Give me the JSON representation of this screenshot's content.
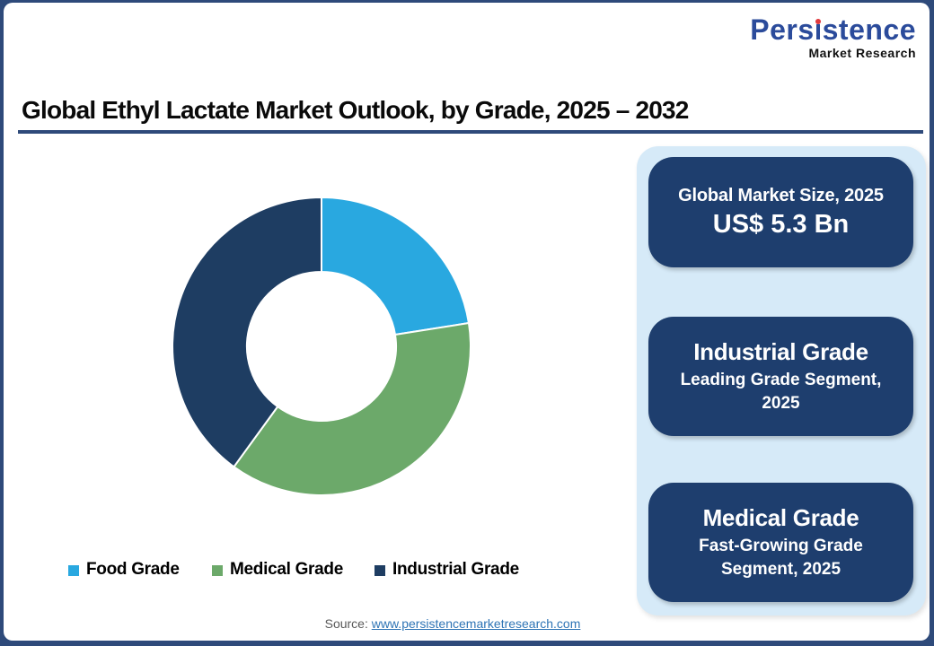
{
  "logo": {
    "brand_full": "Persistence",
    "brand_pre": "Pers",
    "brand_post": "stence",
    "tagline": "Market Research"
  },
  "header": {
    "title": "Global Ethyl Lactate Market Outlook, by Grade, 2025 – 2032"
  },
  "chart_data": {
    "type": "pie",
    "subtype": "donut",
    "categories": [
      "Food Grade",
      "Medical Grade",
      "Industrial Grade"
    ],
    "values": [
      22.5,
      37.5,
      40
    ],
    "unit": "% share (estimated from arc angles)",
    "colors": [
      "#29a8e0",
      "#6ca96a",
      "#1e3d62"
    ],
    "start_angle_deg": 0,
    "direction": "clockwise",
    "inner_radius_ratio": 0.5,
    "legend_position": "bottom",
    "title": "Global Ethyl Lactate Market Outlook, by Grade, 2025 – 2032"
  },
  "cards": [
    {
      "title": "Global Market Size, 2025",
      "value": "US$ 5.3 Bn"
    },
    {
      "title": "Industrial Grade",
      "subtitle": "Leading Grade Segment, 2025"
    },
    {
      "title": "Medical Grade",
      "subtitle": "Fast-Growing Grade Segment, 2025"
    }
  ],
  "footer": {
    "source_label": "Source:",
    "source_link": "www.persistencemarketresearch.com"
  },
  "colors": {
    "frame_border": "#2e4a7a",
    "panel_bg": "#d6eaf8",
    "card_bg": "#1e3e6e",
    "segment_food": "#29a8e0",
    "segment_medical": "#6ca96a",
    "segment_industrial": "#1e3d62",
    "logo_blue": "#2b4b9b",
    "logo_dot_red": "#e03a3e",
    "link_blue": "#2e74b5",
    "source_gray": "#595959"
  }
}
